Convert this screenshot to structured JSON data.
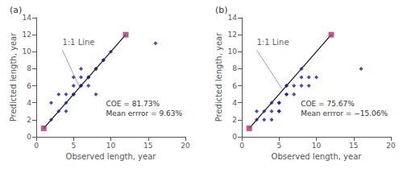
{
  "chart_data": [
    {
      "type": "scatter",
      "title": "(a)",
      "xlabel": "Observed length, year",
      "ylabel": "Predicted length, year",
      "xlim": [
        0,
        20
      ],
      "ylim": [
        0,
        14
      ],
      "xticks": [
        0,
        5,
        10,
        15,
        20
      ],
      "yticks": [
        0,
        2,
        4,
        6,
        8,
        10,
        12,
        14
      ],
      "grid": false,
      "series": [
        {
          "type": "line",
          "line_style": "solid",
          "color": "#111111",
          "x": [
            1,
            12
          ],
          "values": [
            1,
            12
          ]
        },
        {
          "type": "scatter",
          "marker": "diamond",
          "color": "#1a1aaa",
          "x": [
            2,
            2,
            3,
            3,
            4,
            4,
            4,
            5,
            5,
            5,
            5,
            6,
            6,
            6,
            6,
            7,
            7,
            7,
            8,
            8,
            8,
            9,
            9,
            10,
            16
          ],
          "values": [
            4,
            2,
            3,
            5,
            4,
            5,
            3,
            5,
            7,
            6,
            5,
            6,
            7,
            8,
            6,
            7,
            7,
            6,
            8,
            8,
            5,
            9,
            9,
            10,
            11
          ]
        },
        {
          "type": "scatter",
          "marker": "square",
          "color": "#b03070",
          "x": [
            1,
            12
          ],
          "values": [
            1,
            12
          ]
        }
      ],
      "annotations": [
        {
          "text": "1:1 Line",
          "x": 3.5,
          "y": 10.2,
          "arrow_x": 5.8,
          "arrow_y": 5.8
        },
        {
          "text": "COE = 81.73%"
        },
        {
          "text": "Mean errror = 9.63%"
        }
      ]
    },
    {
      "type": "scatter",
      "title": "(b)",
      "xlabel": "Observed length, year",
      "ylabel": "Predicted length, year",
      "xlim": [
        0,
        20
      ],
      "ylim": [
        0,
        14
      ],
      "xticks": [
        0,
        5,
        10,
        15,
        20
      ],
      "yticks": [
        0,
        2,
        4,
        6,
        8,
        10,
        12,
        14
      ],
      "grid": false,
      "series": [
        {
          "type": "line",
          "line_style": "solid",
          "color": "#111111",
          "x": [
            1,
            12
          ],
          "values": [
            1,
            12
          ]
        },
        {
          "type": "scatter",
          "marker": "diamond",
          "color": "#1a1aaa",
          "x": [
            2,
            2,
            3,
            3,
            4,
            4,
            4,
            5,
            5,
            5,
            5,
            6,
            6,
            6,
            6,
            7,
            7,
            8,
            8,
            8,
            9,
            9,
            10,
            16
          ],
          "values": [
            2,
            3,
            3,
            2,
            3,
            4,
            2,
            4,
            4,
            3,
            3,
            5,
            6,
            6,
            5,
            5,
            6,
            8,
            7,
            6,
            7,
            6,
            7,
            8
          ]
        },
        {
          "type": "scatter",
          "marker": "square",
          "color": "#b03070",
          "x": [
            1,
            12
          ],
          "values": [
            1,
            12
          ]
        }
      ],
      "annotations": [
        {
          "text": "1:1 Line",
          "x": 2.0,
          "y": 10.2,
          "arrow_x": 5.5,
          "arrow_y": 5.5
        },
        {
          "text": "COE = 75.67%"
        },
        {
          "text": "Mean errror = −15.06%"
        }
      ]
    }
  ]
}
